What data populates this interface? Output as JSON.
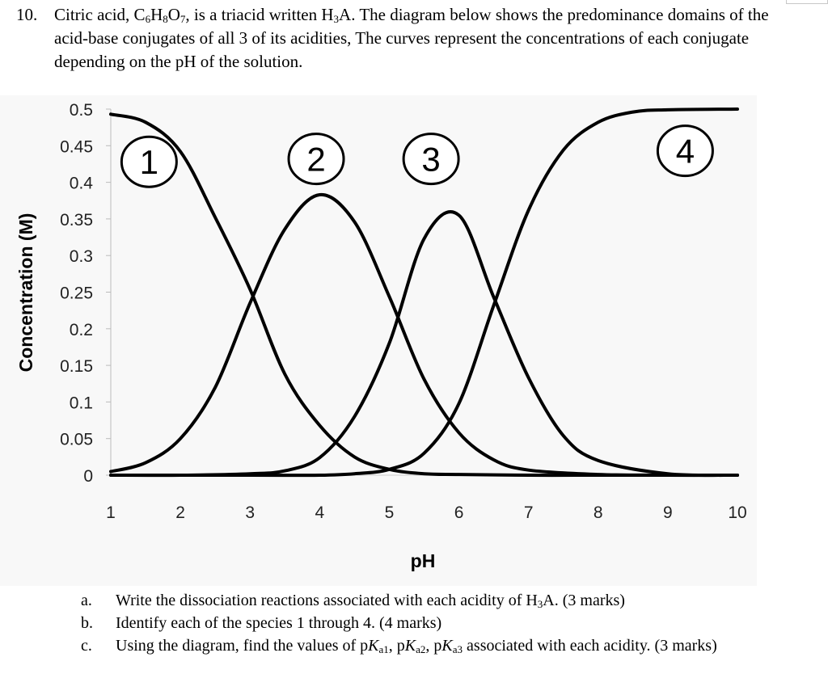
{
  "question": {
    "number": "10.",
    "segments": [
      "Citric acid, C",
      {
        "sub": "6"
      },
      "H",
      {
        "sub": "8"
      },
      "O",
      {
        "sub": "7"
      },
      ", is a triacid written H",
      {
        "sub": "3"
      },
      "A. The diagram below shows the predominance domains of the acid-base conjugates of all 3 of its acidities, The curves represent the concentrations of each conjugate depending on the pH of the solution."
    ]
  },
  "chart_data": {
    "type": "line",
    "xlabel": "pH",
    "ylabel": "Concentration (M)",
    "xlim": [
      1,
      10
    ],
    "ylim": [
      0,
      0.5
    ],
    "x_ticks": [
      "1",
      "2",
      "3",
      "4",
      "5",
      "6",
      "7",
      "8",
      "9",
      "10"
    ],
    "y_ticks": [
      "0",
      "0.05",
      "0.1",
      "0.15",
      "0.2",
      "0.25",
      "0.3",
      "0.35",
      "0.4",
      "0.45",
      "0.5"
    ],
    "grid": false,
    "legend": "none",
    "annotations": [
      {
        "label": "1",
        "x": 1.55,
        "y": 0.428
      },
      {
        "label": "2",
        "x": 3.95,
        "y": 0.432
      },
      {
        "label": "3",
        "x": 5.6,
        "y": 0.432
      },
      {
        "label": "4",
        "x": 9.25,
        "y": 0.443
      }
    ],
    "series": [
      {
        "name": "1",
        "x": [
          1,
          1.5,
          2,
          2.5,
          3,
          3.5,
          4,
          4.5,
          5,
          5.5,
          6,
          7,
          8,
          9,
          10
        ],
        "y": [
          0.493,
          0.482,
          0.442,
          0.352,
          0.254,
          0.138,
          0.068,
          0.025,
          0.008,
          0.002,
          0.001,
          0,
          0,
          0,
          0
        ]
      },
      {
        "name": "2",
        "x": [
          1,
          1.5,
          2,
          2.5,
          3,
          3.5,
          4,
          4.5,
          5,
          5.5,
          6,
          6.5,
          7,
          8,
          9,
          10
        ],
        "y": [
          0.005,
          0.017,
          0.05,
          0.12,
          0.235,
          0.336,
          0.383,
          0.346,
          0.244,
          0.131,
          0.058,
          0.021,
          0.007,
          0.001,
          0,
          0
        ]
      },
      {
        "name": "3",
        "x": [
          1,
          2,
          3,
          3.5,
          4,
          4.5,
          5,
          5.5,
          6,
          6.5,
          7,
          7.5,
          8,
          9,
          10
        ],
        "y": [
          0,
          0,
          0.002,
          0.006,
          0.024,
          0.08,
          0.18,
          0.323,
          0.355,
          0.243,
          0.133,
          0.054,
          0.02,
          0.002,
          0
        ]
      },
      {
        "name": "4",
        "x": [
          1,
          3,
          4,
          4.5,
          5,
          5.5,
          6,
          6.5,
          7,
          7.5,
          8,
          8.5,
          9,
          10
        ],
        "y": [
          0,
          0,
          0,
          0.002,
          0.008,
          0.03,
          0.098,
          0.232,
          0.362,
          0.444,
          0.482,
          0.496,
          0.499,
          0.5
        ]
      }
    ]
  },
  "parts": [
    {
      "letter": "a.",
      "segments": [
        "Write the dissociation reactions associated with each acidity of H",
        {
          "sub": "3"
        },
        "A. (3 marks)"
      ]
    },
    {
      "letter": "b.",
      "segments": [
        "Identify each of the species 1 through 4. (4 marks)"
      ]
    },
    {
      "letter": "c.",
      "segments": [
        "Using the diagram, find the values of p",
        {
          "ital": "K"
        },
        {
          "sub": "a1"
        },
        ", p",
        {
          "ital": "K"
        },
        {
          "sub": "a2"
        },
        ", p",
        {
          "ital": "K"
        },
        {
          "sub": "a3"
        },
        " associated with each acidity. (3 marks)"
      ]
    }
  ]
}
